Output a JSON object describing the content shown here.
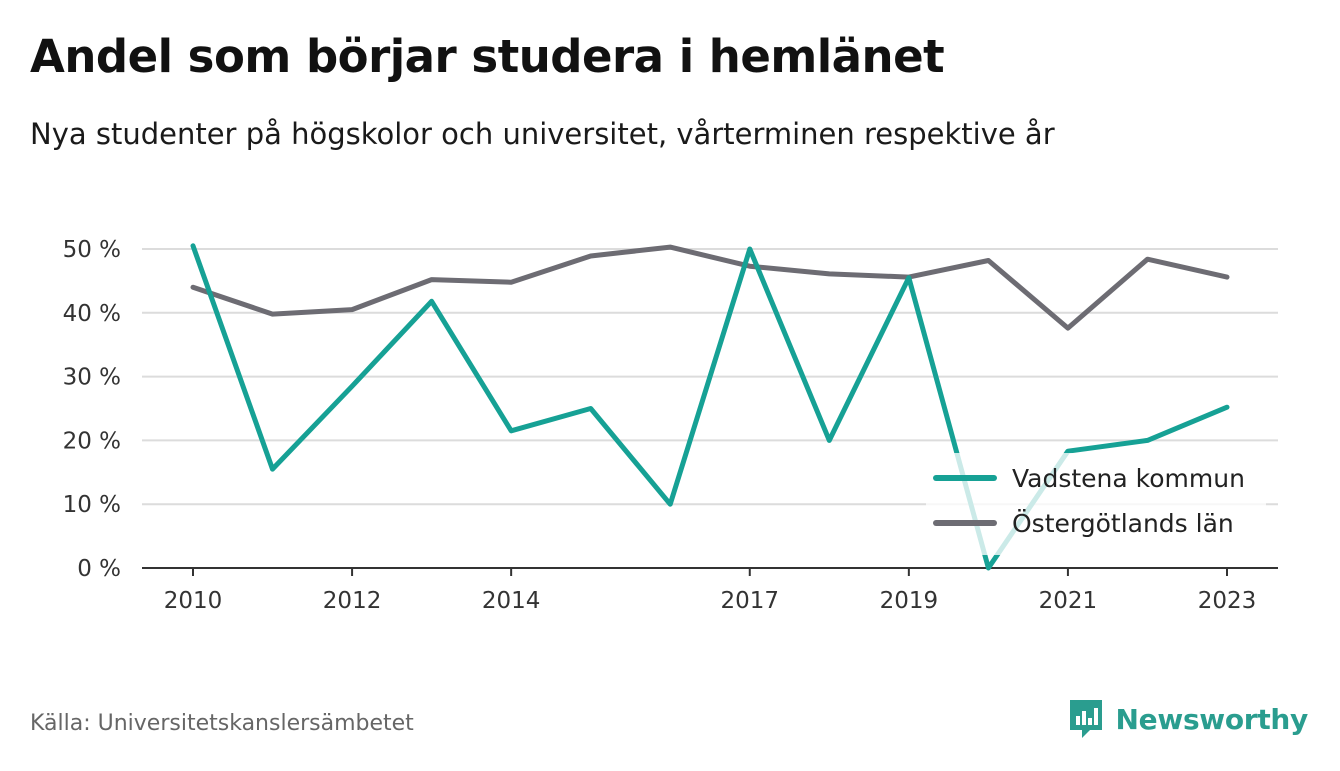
{
  "title": "Andel som börjar studera i hemlänet",
  "subtitle": "Nya studenter på högskolor och universitet, vårterminen respektive år",
  "source": "Källa: Universitetskanslersämbetet",
  "brand": {
    "name": "Newsworthy",
    "icon": "newsworthy-logo-icon",
    "color": "#2a9d8f"
  },
  "chart_data": {
    "type": "line",
    "x": [
      2010,
      2011,
      2012,
      2013,
      2014,
      2015,
      2016,
      2017,
      2018,
      2019,
      2020,
      2021,
      2022,
      2023
    ],
    "x_tick_labels": [
      "2010",
      "2012",
      "2014",
      "2017",
      "2019",
      "2021",
      "2023"
    ],
    "y_tick_labels": [
      "0 %",
      "10 %",
      "20 %",
      "30 %",
      "40 %",
      "50 %"
    ],
    "ylim": [
      0,
      50
    ],
    "grid": true,
    "legend_position": "bottom-right",
    "series": [
      {
        "name": "Vadstena kommun",
        "color": "#16a195",
        "values": [
          50.5,
          15.5,
          28.5,
          41.8,
          21.5,
          25.0,
          10.0,
          50.0,
          20.0,
          45.5,
          0.0,
          18.3,
          20.0,
          25.2
        ]
      },
      {
        "name": "Östergötlands län",
        "color": "#6d6c73",
        "values": [
          44.0,
          39.8,
          40.5,
          45.2,
          44.8,
          48.9,
          50.3,
          47.3,
          46.1,
          45.6,
          48.2,
          37.6,
          48.4,
          45.6
        ]
      }
    ]
  }
}
